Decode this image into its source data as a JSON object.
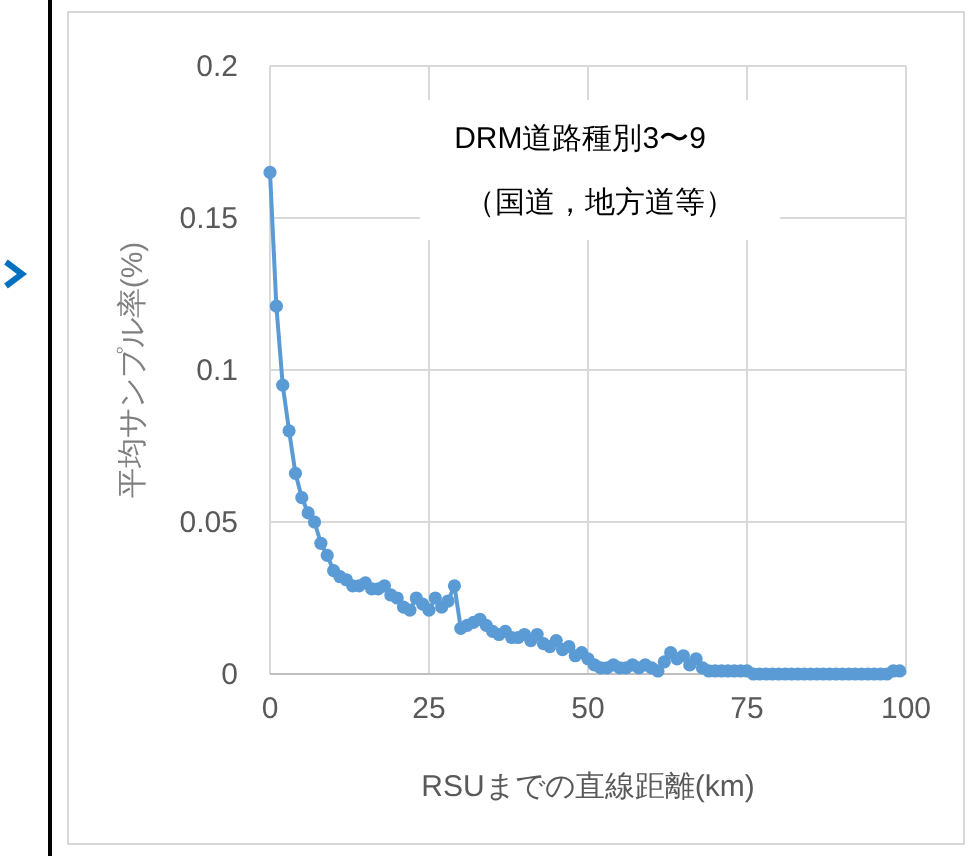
{
  "chart_data": {
    "type": "line",
    "xlabel": "RSUまでの直線距離(km)",
    "ylabel": "平均サンプル率(%)",
    "annotations": [
      "DRM道路種別3〜9",
      "（国道，地方道等）"
    ],
    "x": [
      0,
      1,
      2,
      3,
      4,
      5,
      6,
      7,
      8,
      9,
      10,
      11,
      12,
      13,
      14,
      15,
      16,
      17,
      18,
      19,
      20,
      21,
      22,
      23,
      24,
      25,
      26,
      27,
      28,
      29,
      30,
      31,
      32,
      33,
      34,
      35,
      36,
      37,
      38,
      39,
      40,
      41,
      42,
      43,
      44,
      45,
      46,
      47,
      48,
      49,
      50,
      51,
      52,
      53,
      54,
      55,
      56,
      57,
      58,
      59,
      60,
      61,
      62,
      63,
      64,
      65,
      66,
      67,
      68,
      69,
      70,
      71,
      72,
      73,
      74,
      75,
      76,
      77,
      78,
      79,
      80,
      81,
      82,
      83,
      84,
      85,
      86,
      87,
      88,
      89,
      90,
      91,
      92,
      93,
      94,
      95,
      96,
      97,
      98,
      99
    ],
    "series": [
      {
        "color": "#5b9bd5",
        "values": [
          0.165,
          0.121,
          0.095,
          0.08,
          0.066,
          0.058,
          0.053,
          0.05,
          0.043,
          0.039,
          0.034,
          0.032,
          0.031,
          0.029,
          0.029,
          0.03,
          0.028,
          0.028,
          0.029,
          0.026,
          0.025,
          0.022,
          0.021,
          0.025,
          0.023,
          0.021,
          0.025,
          0.022,
          0.024,
          0.029,
          0.015,
          0.016,
          0.017,
          0.018,
          0.016,
          0.014,
          0.013,
          0.014,
          0.012,
          0.012,
          0.013,
          0.011,
          0.013,
          0.01,
          0.009,
          0.011,
          0.008,
          0.009,
          0.006,
          0.007,
          0.005,
          0.003,
          0.002,
          0.002,
          0.003,
          0.002,
          0.002,
          0.003,
          0.002,
          0.003,
          0.002,
          0.001,
          0.004,
          0.007,
          0.005,
          0.006,
          0.003,
          0.005,
          0.002,
          0.001,
          0.001,
          0.001,
          0.001,
          0.001,
          0.001,
          0.001,
          0,
          0,
          0,
          0,
          0,
          0,
          0,
          0,
          0,
          0,
          0,
          0,
          0,
          0,
          0,
          0,
          0,
          0,
          0,
          0,
          0,
          0,
          0.001,
          0.001
        ]
      }
    ],
    "xlim": [
      0,
      100
    ],
    "xticks": [
      0,
      25,
      50,
      75,
      100
    ],
    "ylim": [
      0,
      0.2
    ],
    "yticks": [
      0,
      0.05,
      0.1,
      0.15,
      0.2
    ],
    "grid": true,
    "marker": "circle",
    "line_style": "solid"
  }
}
